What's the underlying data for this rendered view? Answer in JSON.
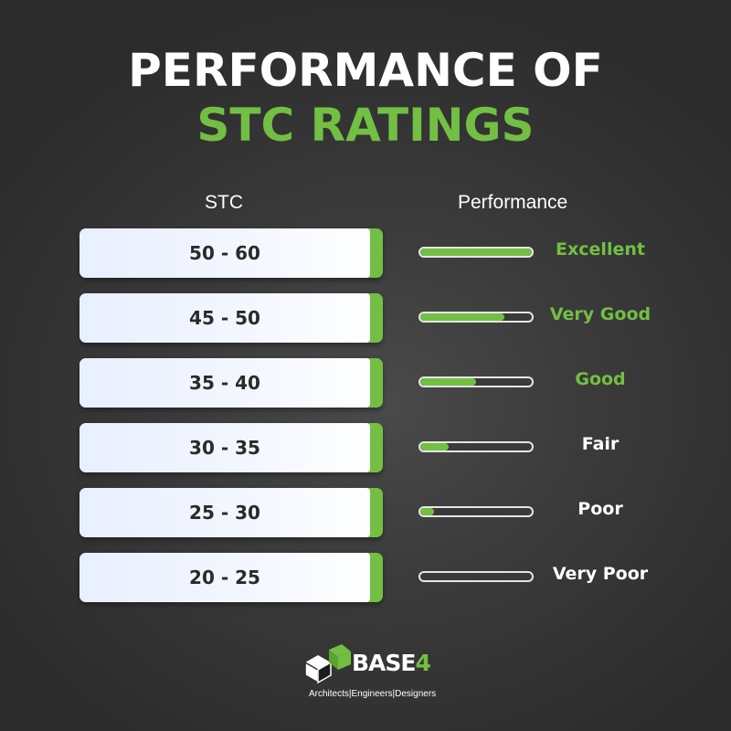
{
  "colors": {
    "accent": "#72bf44",
    "text": "#ffffff",
    "background": "#2e2e2e"
  },
  "title": {
    "line1": "PERFORMANCE OF",
    "line2": "STC RATINGS"
  },
  "headers": {
    "stc": "STC",
    "performance": "Performance"
  },
  "rows": [
    {
      "range": "50 - 60",
      "label": "Excellent",
      "level": 1.0,
      "highlight": true
    },
    {
      "range": "45 - 50",
      "label": "Very Good",
      "level": 0.75,
      "highlight": true
    },
    {
      "range": "35 - 40",
      "label": "Good",
      "level": 0.5,
      "highlight": true
    },
    {
      "range": "30 - 35",
      "label": "Fair",
      "level": 0.25,
      "highlight": false
    },
    {
      "range": "25 - 30",
      "label": "Poor",
      "level": 0.12,
      "highlight": false
    },
    {
      "range": "20 - 25",
      "label": "Very Poor",
      "level": 0.0,
      "highlight": false
    }
  ],
  "logo": {
    "brand_prefix": "BASE",
    "brand_suffix": "4",
    "tagline": "Architects|Engineers|Designers"
  }
}
